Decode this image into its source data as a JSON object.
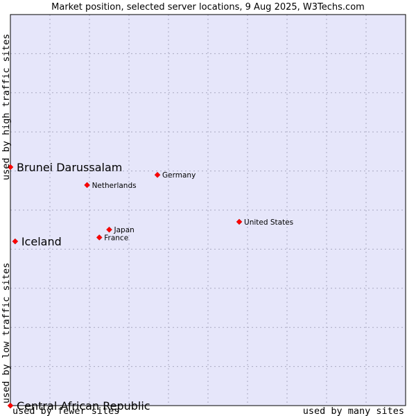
{
  "chart_data": {
    "type": "scatter",
    "title": "Market position, selected server locations, 9 Aug 2025, W3Techs.com",
    "xlabel_left": "used by fewer sites",
    "xlabel_right": "used by many sites",
    "ylabel_bottom": "used by low traffic sites",
    "ylabel_top": "used by high traffic sites",
    "xlim": [
      0,
      10
    ],
    "ylim": [
      0,
      10
    ],
    "grid": true,
    "points": [
      {
        "label": "Brunei Darussalam",
        "x": 0.0,
        "y": 6.1,
        "emphasis": true
      },
      {
        "label": "Iceland",
        "x": 0.12,
        "y": 4.2,
        "emphasis": true
      },
      {
        "label": "Central African Republic",
        "x": 0.0,
        "y": 0.0,
        "emphasis": true
      },
      {
        "label": "Germany",
        "x": 3.72,
        "y": 5.9,
        "emphasis": false
      },
      {
        "label": "Netherlands",
        "x": 1.94,
        "y": 5.64,
        "emphasis": false
      },
      {
        "label": "United States",
        "x": 5.79,
        "y": 4.7,
        "emphasis": false
      },
      {
        "label": "Japan",
        "x": 2.5,
        "y": 4.5,
        "emphasis": false
      },
      {
        "label": "France",
        "x": 2.25,
        "y": 4.3,
        "emphasis": false
      }
    ]
  },
  "colors": {
    "plot_background": "#e6e6fa",
    "marker": "#ff0000",
    "grid": "#a8a8c0",
    "frame": "#000000"
  }
}
